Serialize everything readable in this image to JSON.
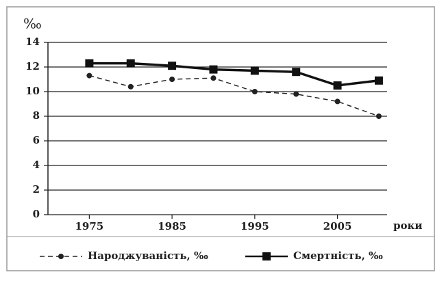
{
  "chart_data": {
    "type": "line",
    "y_label": "‰",
    "x_label": "роки",
    "x": [
      1975,
      1980,
      1985,
      1990,
      1995,
      2000,
      2005,
      2010
    ],
    "series": [
      {
        "name": "Народжуваність, ‰",
        "color": "#222222",
        "line_style": "dashed",
        "marker": "circle",
        "values": [
          11.3,
          10.4,
          11.0,
          11.1,
          10.0,
          9.8,
          9.2,
          8.0
        ]
      },
      {
        "name": "Смертність, ‰",
        "color": "#111111",
        "line_style": "solid",
        "marker": "square",
        "values": [
          12.3,
          12.3,
          12.1,
          11.8,
          11.7,
          11.6,
          10.5,
          10.9
        ]
      }
    ],
    "xlim": [
      1970,
      2011
    ],
    "xticks": [
      1975,
      1985,
      1995,
      2005
    ],
    "ylim": [
      0,
      14
    ],
    "yticks": [
      0,
      2,
      4,
      6,
      8,
      10,
      12,
      14
    ],
    "grid": true,
    "legend": "bottom"
  }
}
